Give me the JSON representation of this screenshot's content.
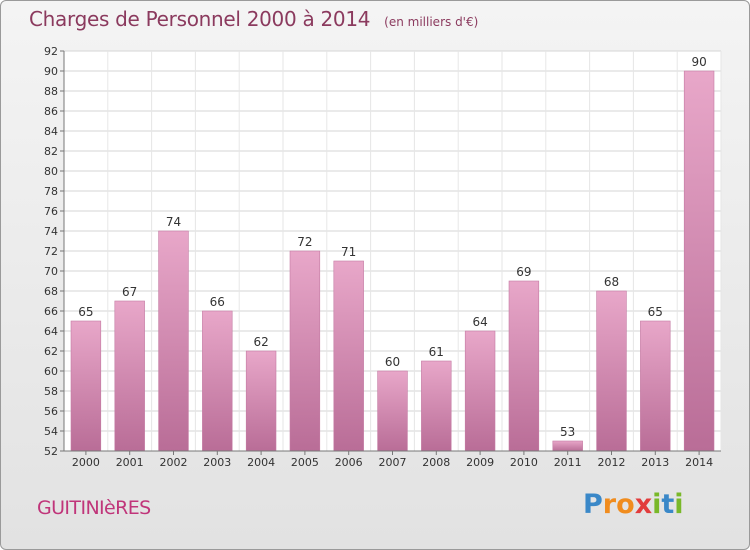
{
  "chart_data": {
    "type": "bar",
    "title": "Charges de Personnel 2000 à 2014",
    "subtitle": "(en milliers d'€)",
    "categories": [
      "2000",
      "2001",
      "2002",
      "2003",
      "2004",
      "2005",
      "2006",
      "2007",
      "2008",
      "2009",
      "2010",
      "2011",
      "2012",
      "2013",
      "2014"
    ],
    "values": [
      65,
      67,
      74,
      66,
      62,
      72,
      71,
      60,
      61,
      64,
      69,
      53,
      68,
      65,
      90
    ],
    "ylim": [
      52,
      92
    ],
    "yticks": [
      52,
      54,
      56,
      58,
      60,
      62,
      64,
      66,
      68,
      70,
      72,
      74,
      76,
      78,
      80,
      82,
      84,
      86,
      88,
      90,
      92
    ],
    "xlabel": "",
    "ylabel": "",
    "grid": true,
    "bar_color": "#d98fb6"
  },
  "footer": {
    "commune": "GUITINIèRES",
    "logo_letters": [
      {
        "ch": "P",
        "color": "#3a88c8"
      },
      {
        "ch": "r",
        "color": "#f08c1e"
      },
      {
        "ch": "o",
        "color": "#f08c1e"
      },
      {
        "ch": "x",
        "color": "#e23c3c"
      },
      {
        "ch": "i",
        "color": "#79b829"
      },
      {
        "ch": "t",
        "color": "#3a88c8"
      },
      {
        "ch": "i",
        "color": "#79b829"
      }
    ]
  }
}
